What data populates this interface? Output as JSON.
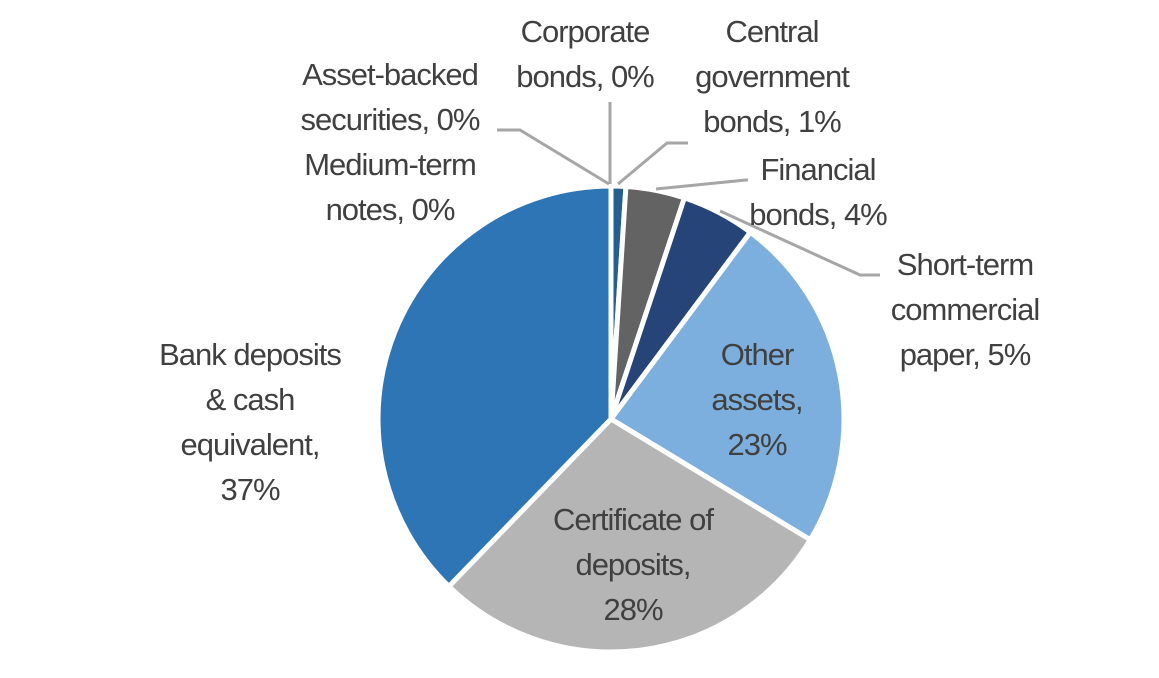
{
  "chart_data": {
    "type": "pie",
    "title": "",
    "start": "top",
    "direction": "clockwise",
    "slices": [
      {
        "name": "Corporate bonds",
        "value": 0,
        "color": "#2e75b6",
        "label_lines": [
          "Corporate",
          "bonds, 0%"
        ]
      },
      {
        "name": "Central government bonds",
        "value": 1,
        "color": "#255e91",
        "label_lines": [
          "Central",
          "government",
          "bonds, 1%"
        ]
      },
      {
        "name": "Financial bonds",
        "value": 4,
        "color": "#636363",
        "label_lines": [
          "Financial",
          "bonds, 4%"
        ]
      },
      {
        "name": "Short-term commercial paper",
        "value": 5,
        "color": "#264478",
        "label_lines": [
          "Short-term",
          "commercial",
          "paper, 5%"
        ]
      },
      {
        "name": "Other assets",
        "value": 23,
        "color": "#7cafdd",
        "label_lines": [
          "Other",
          "assets,",
          "23%"
        ]
      },
      {
        "name": "Certificate of deposits",
        "value": 28,
        "color": "#b5b5b5",
        "label_lines": [
          "Certificate of",
          "deposits,",
          "28%"
        ]
      },
      {
        "name": "Bank deposits & cash equivalent",
        "value": 37,
        "color": "#2e75b6",
        "label_lines": [
          "Bank deposits",
          "& cash",
          "equivalent,",
          "37%"
        ]
      },
      {
        "name": "Asset-backed securities",
        "value": 0,
        "color": "#2e75b6",
        "label_lines": [
          "Asset-backed",
          "securities, 0%"
        ]
      },
      {
        "name": "Medium-term notes",
        "value": 0,
        "color": "#2e75b6",
        "label_lines": [
          "Medium-term",
          "notes, 0%"
        ]
      }
    ]
  }
}
